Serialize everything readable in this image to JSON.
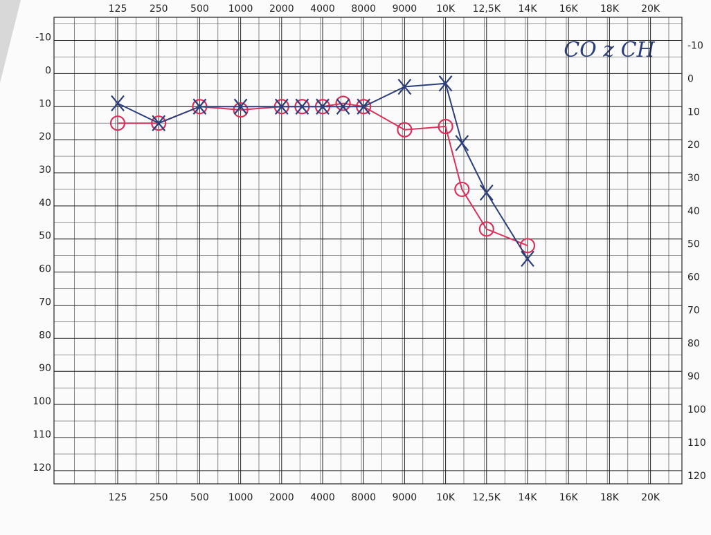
{
  "chart_data": {
    "type": "line",
    "annotation": "CO z CH",
    "xticks": [
      125,
      250,
      500,
      1000,
      2000,
      4000,
      8000,
      9000,
      {
        "value": 10000,
        "label": "10K"
      },
      {
        "value": 12500,
        "label": "12,5K"
      },
      {
        "value": 14000,
        "label": "14K"
      },
      {
        "value": 16000,
        "label": "16K"
      },
      {
        "value": 18000,
        "label": "18K"
      },
      {
        "value": 20000,
        "label": "20K"
      }
    ],
    "ylim": [
      -17,
      124
    ],
    "yticks": [
      -10,
      0,
      10,
      20,
      30,
      40,
      50,
      60,
      70,
      80,
      90,
      100,
      110,
      120
    ],
    "y_inverted": true,
    "grid": true,
    "series": [
      {
        "color": "#d8315b",
        "marker": "o",
        "x": [
          125,
          250,
          500,
          1000,
          2000,
          3000,
          4000,
          6000,
          8000,
          9000,
          10000,
          11000,
          12500,
          14000
        ],
        "values": [
          15,
          15,
          10,
          11,
          10,
          10,
          10,
          9,
          10,
          17,
          16,
          35,
          47,
          52
        ]
      },
      {
        "color": "#2c3e7a",
        "marker": "x",
        "x": [
          125,
          250,
          500,
          1000,
          2000,
          3000,
          4000,
          6000,
          8000,
          9000,
          10000,
          11000,
          12500,
          14000
        ],
        "values": [
          9,
          15,
          10,
          10,
          10,
          10,
          10,
          10,
          10,
          4,
          3,
          21,
          36,
          56
        ]
      }
    ]
  }
}
